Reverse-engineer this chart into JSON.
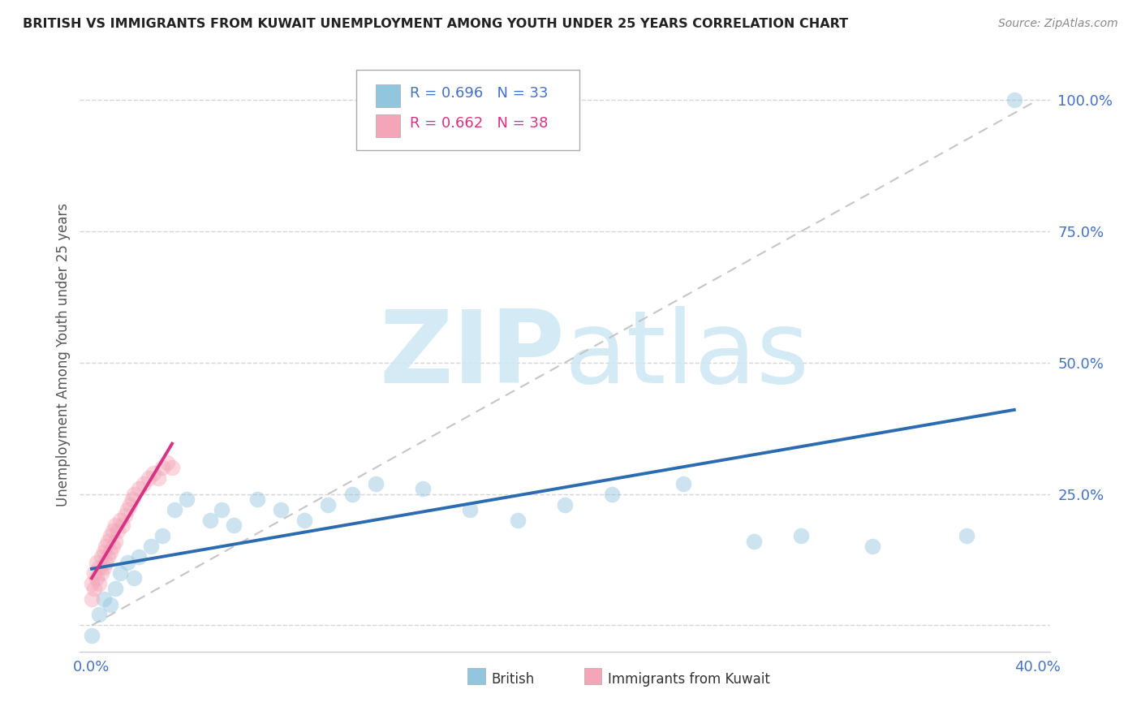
{
  "title": "BRITISH VS IMMIGRANTS FROM KUWAIT UNEMPLOYMENT AMONG YOUTH UNDER 25 YEARS CORRELATION CHART",
  "source": "Source: ZipAtlas.com",
  "ylabel": "Unemployment Among Youth under 25 years",
  "xlim": [
    -0.005,
    0.405
  ],
  "ylim": [
    -0.05,
    1.08
  ],
  "xticks": [
    0.0,
    0.05,
    0.1,
    0.15,
    0.2,
    0.25,
    0.3,
    0.35,
    0.4
  ],
  "yticks": [
    0.0,
    0.25,
    0.5,
    0.75,
    1.0
  ],
  "ytick_labels": [
    "",
    "25.0%",
    "50.0%",
    "75.0%",
    "100.0%"
  ],
  "legend_british_r": "R = 0.696",
  "legend_british_n": "N = 33",
  "legend_kuwait_r": "R = 0.662",
  "legend_kuwait_n": "N = 38",
  "blue_scatter_color": "#92c5de",
  "pink_scatter_color": "#f4a6b8",
  "blue_line_color": "#2b6cb0",
  "pink_line_color": "#d63384",
  "ref_line_color": "#c0c0c0",
  "watermark_color": "#cde8f5",
  "british_x": [
    0.0,
    0.003,
    0.005,
    0.008,
    0.01,
    0.012,
    0.015,
    0.018,
    0.02,
    0.025,
    0.03,
    0.035,
    0.04,
    0.05,
    0.055,
    0.06,
    0.07,
    0.08,
    0.09,
    0.1,
    0.11,
    0.12,
    0.14,
    0.16,
    0.18,
    0.2,
    0.22,
    0.25,
    0.28,
    0.3,
    0.33,
    0.37,
    0.39
  ],
  "british_y": [
    -0.02,
    0.02,
    0.05,
    0.04,
    0.07,
    0.1,
    0.12,
    0.09,
    0.13,
    0.15,
    0.17,
    0.22,
    0.24,
    0.2,
    0.22,
    0.19,
    0.24,
    0.22,
    0.2,
    0.23,
    0.25,
    0.27,
    0.26,
    0.22,
    0.2,
    0.23,
    0.25,
    0.27,
    0.16,
    0.17,
    0.15,
    0.17,
    1.0
  ],
  "kuwait_x": [
    0.0,
    0.0,
    0.001,
    0.001,
    0.002,
    0.002,
    0.003,
    0.003,
    0.004,
    0.004,
    0.005,
    0.005,
    0.006,
    0.006,
    0.007,
    0.007,
    0.008,
    0.008,
    0.009,
    0.009,
    0.01,
    0.01,
    0.011,
    0.012,
    0.013,
    0.014,
    0.015,
    0.016,
    0.017,
    0.018,
    0.02,
    0.022,
    0.024,
    0.026,
    0.028,
    0.03,
    0.032,
    0.034
  ],
  "kuwait_y": [
    0.05,
    0.08,
    0.07,
    0.1,
    0.09,
    0.12,
    0.08,
    0.11,
    0.1,
    0.13,
    0.11,
    0.14,
    0.12,
    0.15,
    0.13,
    0.16,
    0.14,
    0.17,
    0.15,
    0.18,
    0.16,
    0.19,
    0.18,
    0.2,
    0.19,
    0.21,
    0.22,
    0.23,
    0.24,
    0.25,
    0.26,
    0.27,
    0.28,
    0.29,
    0.28,
    0.3,
    0.31,
    0.3
  ]
}
